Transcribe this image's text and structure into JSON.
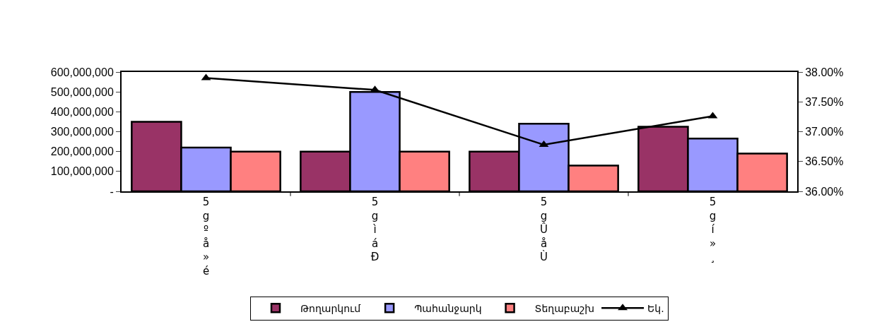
{
  "chart_data": {
    "type": "bar",
    "categories": [
      "5gºå»é",
      "5gìáÐ",
      "5gÛåÙ",
      "5gí»¸"
    ],
    "series": [
      {
        "name": "Թողարկում",
        "color": "#993366",
        "values": [
          350000000,
          200000000,
          200000000,
          325000000
        ]
      },
      {
        "name": "Պահանջարկ",
        "color": "#9999ff",
        "values": [
          220000000,
          500000000,
          340000000,
          265000000
        ]
      },
      {
        "name": "Տեղաբաշխ",
        "color": "#ff8080",
        "values": [
          200000000,
          200000000,
          130000000,
          190000000
        ]
      },
      {
        "name": "Եկ.",
        "type": "line",
        "axis": "y2",
        "color": "#000000",
        "marker": "triangle",
        "values": [
          37.9,
          37.7,
          36.78,
          37.26
        ]
      }
    ],
    "ylim": [
      0,
      600000000
    ],
    "yticks": [
      {
        "value": 0,
        "label": "-"
      },
      {
        "value": 100000000,
        "label": "100,000,000"
      },
      {
        "value": 200000000,
        "label": "200,000,000"
      },
      {
        "value": 300000000,
        "label": "300,000,000"
      },
      {
        "value": 400000000,
        "label": "400,000,000"
      },
      {
        "value": 500000000,
        "label": "500,000,000"
      },
      {
        "value": 600000000,
        "label": "600,000,000"
      }
    ],
    "y2lim": [
      36,
      38
    ],
    "y2ticks": [
      {
        "value": 36,
        "label": "36.00%"
      },
      {
        "value": 36.5,
        "label": "36.50%"
      },
      {
        "value": 37,
        "label": "37.00%"
      },
      {
        "value": 37.5,
        "label": "37.50%"
      },
      {
        "value": 38,
        "label": "38.00%"
      }
    ],
    "legend": "bottom"
  }
}
